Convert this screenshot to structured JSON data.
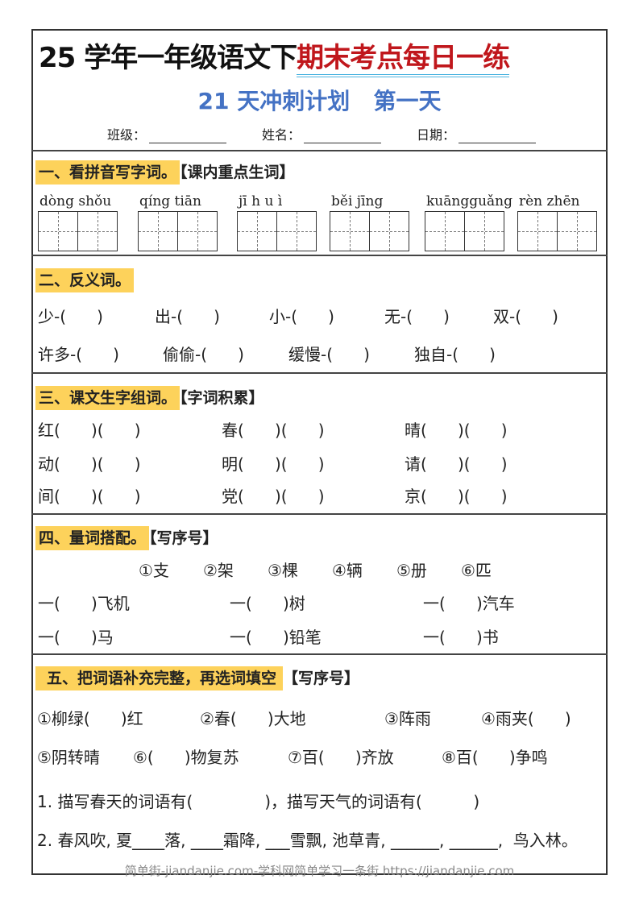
{
  "header": {
    "title_black": "25 学年一年级语文下",
    "title_red": "期末考点每日一练",
    "subtitle": "21 天冲刺计划   第一天",
    "fields": [
      {
        "label": "班级："
      },
      {
        "label": "姓名："
      },
      {
        "label": "日期："
      }
    ]
  },
  "s1": {
    "title": "一、看拼音写字词。",
    "tag": "【课内重点生词】",
    "pinyin": [
      "dòng shǒu",
      "qíng tiān",
      "jī h u ì",
      "běi jīng",
      "kuāngguǎng",
      "rèn zhēn"
    ]
  },
  "s2": {
    "title": "二、反义词。",
    "rows": [
      [
        "少-(      )",
        "出-(      )",
        "小-(      )",
        "无-(      )",
        "双-(      )"
      ],
      [
        "许多-(      )",
        "偷偷-(      )",
        "缓慢-(      )",
        "独自-(      )"
      ]
    ]
  },
  "s3": {
    "title": "三、课文生字组词。",
    "tag": "【字词积累】",
    "rows": [
      [
        "红(      )(      )",
        "春(      )(      )",
        "晴(      )(      )"
      ],
      [
        "动(      )(      )",
        "明(      )(      )",
        "请(      )(      )"
      ],
      [
        "间(      )(      )",
        "党(      )(      )",
        "京(      )(      )"
      ]
    ]
  },
  "s4": {
    "title": "四、量词搭配。",
    "tag": "【写序号】",
    "options": [
      "①支",
      "②架",
      "③棵",
      "④辆",
      "⑤册",
      "⑥匹"
    ],
    "rows": [
      [
        "一(      )飞机",
        "一(      )树",
        "一(      )汽车"
      ],
      [
        "一(      )马",
        "一(      )铅笔",
        "一(      )书"
      ]
    ]
  },
  "s5": {
    "title": "五、把词语补充完整，再选词填空",
    "tag": "【写序号】",
    "rows": [
      [
        "①柳绿(      )红",
        "②春(      )大地",
        "③阵雨",
        "④雨夹(      )"
      ],
      [
        "⑤阴转晴",
        "⑥(      )物复苏",
        "⑦百(      )齐放",
        "⑧百(      )争鸣"
      ]
    ],
    "q1": "1. 描写春天的词语有(              )，描写天气的词语有(          )",
    "q2": "2. 春风吹, 夏____落, ____霜降, ___雪飘, 池草青, ______, ______,  鸟入林。"
  },
  "footer": "简单街-jiandanjie.com-学科网简单学习一条街 https://jiandanjie.com"
}
